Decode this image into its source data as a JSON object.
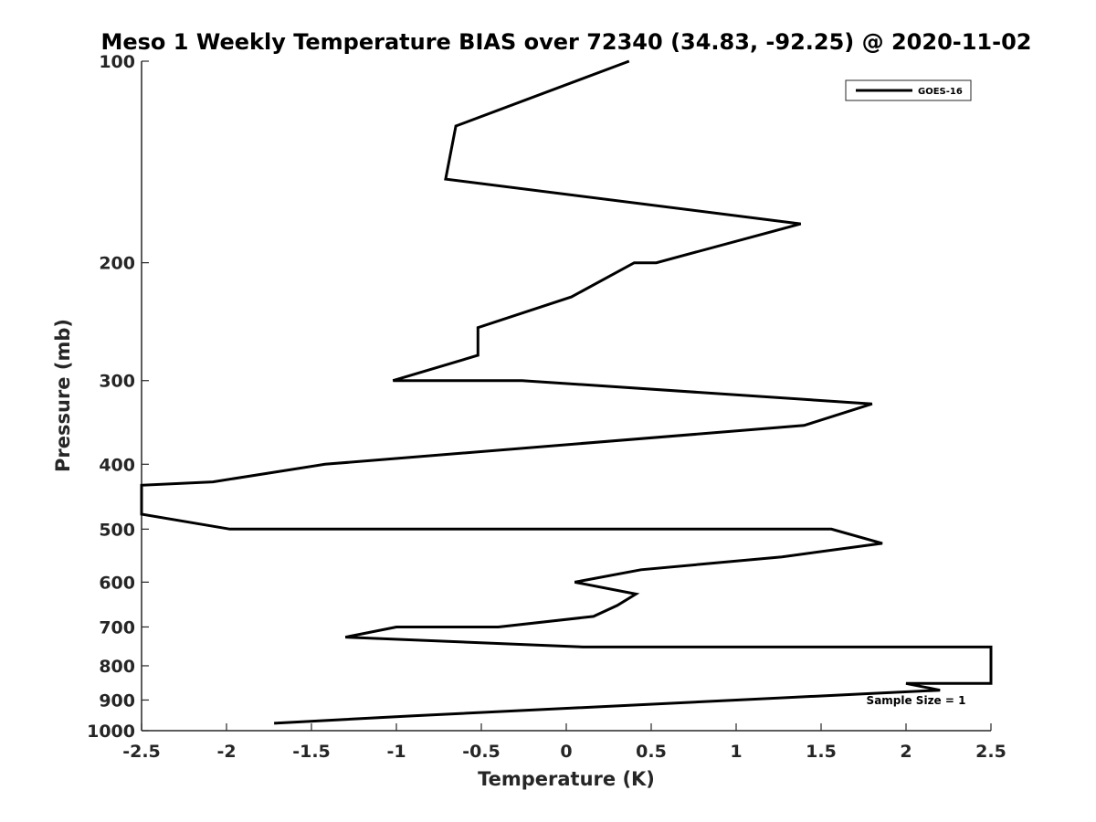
{
  "chart_data": {
    "type": "line",
    "title": "Meso 1 Weekly Temperature BIAS over 72340 (34.83, -92.25) @ 2020-11-02",
    "xlabel": "Temperature (K)",
    "ylabel": "Pressure (mb)",
    "xlim": [
      -2.5,
      2.5
    ],
    "ylim": [
      100,
      1000
    ],
    "y_scale": "log",
    "y_reversed": true,
    "x_ticks": [
      "-2.5",
      "-2",
      "-1.5",
      "-1",
      "-0.5",
      "0",
      "0.5",
      "1",
      "1.5",
      "2",
      "2.5"
    ],
    "y_ticks": [
      "100",
      "200",
      "300",
      "400",
      "500",
      "600",
      "700",
      "800",
      "900",
      "1000"
    ],
    "grid": false,
    "legend_position": "top-right",
    "annotation": "Sample Size = 1",
    "series": [
      {
        "name": "GOES-16",
        "color": "#000000",
        "points": [
          [
            0.37,
            100
          ],
          [
            -0.65,
            125
          ],
          [
            -0.71,
            150
          ],
          [
            1.38,
            175
          ],
          [
            0.53,
            200
          ],
          [
            0.4,
            200
          ],
          [
            0.03,
            225
          ],
          [
            -0.52,
            250
          ],
          [
            -0.52,
            275
          ],
          [
            -1.02,
            300
          ],
          [
            -0.26,
            300
          ],
          [
            1.8,
            325
          ],
          [
            1.4,
            350
          ],
          [
            -1.42,
            400
          ],
          [
            -2.08,
            425
          ],
          [
            -2.5,
            430
          ],
          [
            -2.5,
            475
          ],
          [
            -1.98,
            500
          ],
          [
            1.56,
            500
          ],
          [
            1.86,
            525
          ],
          [
            1.27,
            550
          ],
          [
            0.44,
            575
          ],
          [
            0.05,
            600
          ],
          [
            0.41,
            625
          ],
          [
            0.3,
            650
          ],
          [
            0.16,
            675
          ],
          [
            -0.4,
            700
          ],
          [
            -1.0,
            700
          ],
          [
            -1.3,
            725
          ],
          [
            0.1,
            750
          ],
          [
            2.5,
            750
          ],
          [
            2.5,
            850
          ],
          [
            2.0,
            850
          ],
          [
            2.2,
            870
          ],
          [
            1.8,
            880
          ],
          [
            1.0,
            900
          ],
          [
            -0.9,
            950
          ],
          [
            -1.72,
            975
          ]
        ]
      }
    ]
  }
}
